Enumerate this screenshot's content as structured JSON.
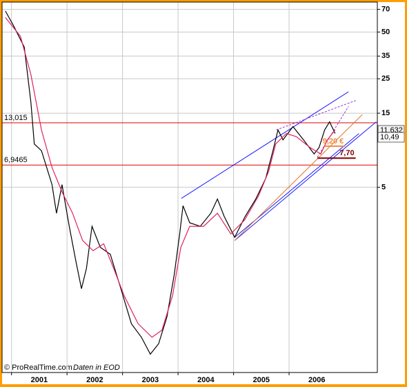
{
  "chart_data": {
    "type": "line",
    "log_y": true,
    "grid": true,
    "xlim": [
      2000.83,
      2007.59
    ],
    "ylim": [
      0.32,
      78
    ],
    "xticks": [
      {
        "value": 2001,
        "label": "2001"
      },
      {
        "value": 2002,
        "label": "2002"
      },
      {
        "value": 2003,
        "label": "2003"
      },
      {
        "value": 2004,
        "label": "2004"
      },
      {
        "value": 2005,
        "label": "2005"
      },
      {
        "value": 2006,
        "label": "2006"
      }
    ],
    "yticks": [
      5,
      15,
      25,
      35,
      50,
      70
    ],
    "series": [
      {
        "color": "#000000",
        "x": [
          2000.89,
          2001.04,
          2001.23,
          2001.35,
          2001.41,
          2001.54,
          2001.73,
          2001.81,
          2001.91,
          2002.04,
          2002.16,
          2002.26,
          2002.35,
          2002.45,
          2002.6,
          2002.78,
          2002.97,
          2003.16,
          2003.34,
          2003.5,
          2003.65,
          2003.8,
          2003.93,
          2004.03,
          2004.09,
          2004.21,
          2004.4,
          2004.59,
          2004.71,
          2004.83,
          2005.02,
          2005.21,
          2005.4,
          2005.58,
          2005.71,
          2005.8,
          2005.89,
          2006.07,
          2006.26,
          2006.45,
          2006.54,
          2006.64,
          2006.73,
          2006.83
        ],
        "values": [
          68.3,
          54.6,
          40,
          17.6,
          9.5,
          8.6,
          5.2,
          3.4,
          5.2,
          2.8,
          1.67,
          1.11,
          1.5,
          2.8,
          2.05,
          1.85,
          1.11,
          0.66,
          0.54,
          0.42,
          0.49,
          0.73,
          1.36,
          2.5,
          3.8,
          2.95,
          2.8,
          3.4,
          4.2,
          3.25,
          2.38,
          3.25,
          4.2,
          5.7,
          8.6,
          11.7,
          10.1,
          12.3,
          10.1,
          8.2,
          9.0,
          11.7,
          13.2,
          11.1
        ]
      },
      {
        "color": "#e0205a",
        "x": [
          2000.89,
          2001.16,
          2001.35,
          2001.54,
          2001.73,
          2001.91,
          2002.1,
          2002.28,
          2002.47,
          2002.66,
          2002.84,
          2003.03,
          2003.28,
          2003.53,
          2003.71,
          2003.9,
          2004.05,
          2004.21,
          2004.46,
          2004.71,
          2004.95,
          2005.2,
          2005.45,
          2005.63,
          2005.76,
          2005.95,
          2006.13,
          2006.38,
          2006.57,
          2006.69,
          2006.83
        ],
        "values": [
          62,
          47,
          26.6,
          11.7,
          6.7,
          4.67,
          3.4,
          2.27,
          1.95,
          2.16,
          1.5,
          1.0,
          0.66,
          0.54,
          0.6,
          1.0,
          2.05,
          2.8,
          2.8,
          3.4,
          2.5,
          3.08,
          4.4,
          6.3,
          9.5,
          11.1,
          10.6,
          9.0,
          8.2,
          10.1,
          11.7
        ]
      }
    ],
    "lines": [
      {
        "color": "#1a1aff",
        "x": [
          2004.06,
          2007.07
        ],
        "y": [
          4.24,
          20.6
        ]
      },
      {
        "color": "#1a1aff",
        "x": [
          2005.02,
          2007.57
        ],
        "y": [
          2.27,
          13.2
        ]
      },
      {
        "color": "#1a1aff",
        "x": [
          2005.02,
          2007.26
        ],
        "y": [
          2.38,
          11.1
        ]
      },
      {
        "color": "#e07020",
        "x": [
          2005.02,
          2007.32
        ],
        "y": [
          2.27,
          14.7
        ]
      },
      {
        "color": "#9933cc",
        "dash": true,
        "x": [
          2005.77,
          2007.2
        ],
        "y": [
          11.7,
          18.1
        ]
      },
      {
        "color": "#9933cc",
        "dash": true,
        "x": [
          2006.51,
          2007.07
        ],
        "y": [
          7.8,
          16.6
        ]
      }
    ],
    "hlines": [
      {
        "value": 13.015,
        "label": "13,015",
        "color": "#e00000"
      },
      {
        "value": 6.9465,
        "label": "6,9465",
        "color": "#e00000"
      }
    ],
    "levels": [
      {
        "value": 9.2,
        "label": "9,20 €",
        "color": "#f08a40",
        "x": [
          2006.64,
          2007.01
        ]
      },
      {
        "value": 7.7,
        "label": "7,70",
        "color": "#800000",
        "x": [
          2006.51,
          2007.2
        ]
      }
    ],
    "price_tags": [
      {
        "value": 11.632,
        "label": "11,632"
      },
      {
        "value": 10.49,
        "label": "10,49"
      }
    ],
    "footer": [
      "© ProRealTime.com",
      "Daten in EOD"
    ]
  }
}
